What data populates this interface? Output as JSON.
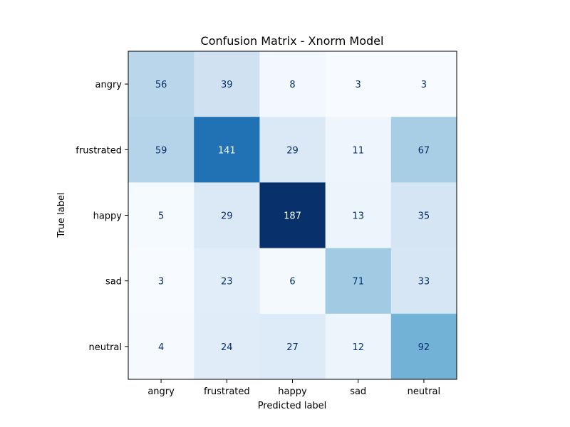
{
  "chart_data": {
    "type": "heatmap",
    "title": "Confusion Matrix - Xnorm Model",
    "xlabel": "Predicted label",
    "ylabel": "True label",
    "x_categories": [
      "angry",
      "frustrated",
      "happy",
      "sad",
      "neutral"
    ],
    "y_categories": [
      "angry",
      "frustrated",
      "happy",
      "sad",
      "neutral"
    ],
    "values": [
      [
        56,
        39,
        8,
        3,
        3
      ],
      [
        59,
        141,
        29,
        11,
        67
      ],
      [
        5,
        29,
        187,
        13,
        35
      ],
      [
        3,
        23,
        6,
        71,
        33
      ],
      [
        4,
        24,
        27,
        12,
        92
      ]
    ],
    "colormap": "Blues",
    "vmin": 3,
    "vmax": 187,
    "colorbar": false,
    "grid": false
  }
}
